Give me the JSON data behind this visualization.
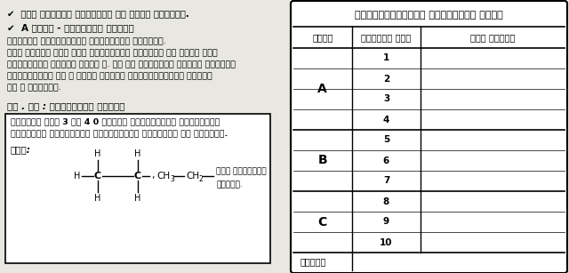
{
  "bg_color": "#e8e8e0",
  "table_bg": "#ffffff",
  "text_color": "#1a1a1a",
  "border_color": "#000000",
  "table_title": "පරික්‍ෂකායොය් ප්‍රයෝජනය සදහා",
  "col1_header": "කොටස",
  "col2_header": "ප්‍රශ්න අංක",
  "col3_header": "ඇලු ලකුණු",
  "sections": [
    {
      "label": "A",
      "rows": [
        "1",
        "2",
        "3",
        "4"
      ]
    },
    {
      "label": "B",
      "rows": [
        "5",
        "6",
        "7"
      ]
    },
    {
      "label": "C",
      "rows": [
        "8",
        "9",
        "10"
      ]
    }
  ],
  "footer": "එකතුව",
  "line1": "✔  ගණක යන්ත්ර හාස්තයට ඉබ දෙනු තෞලුකේ.",
  "line2": "✔  A කොටස - වූයවහාර රැශනා",
  "line3": "සියලුම ප්‍රශ්නහලට පිලිතුරු සපයන්න.",
  "line4": "ආපේ උත්තර ඇක් ඇක් ප්‍රශ්නයට පහළින් ඉබ සලසා ඇති",
  "line5": "ක්‍රාන්වල ලිළිය යුතු ය. මේ ඉබ ප්‍රමාණය උත්තර ලිළිමට",
  "line6": "ප්‍රමාණවත් බව ජ දීරඊ උත්තර බලාපොර්තකු තොලවන",
  "line7": "බව ජ සලකන්න.",
  "line8": "සේ . යු : උදාහරයක් කොටුව",
  "box_line1": "ප්‍රශ්න අංක 3 සහ 4 0 උත්තර සපයකින්දි ඇල්කයිල්",
  "box_line2": "කාර්බන් සම්මිශ්ර ඉකාරයකින් නිරුපනය කප හේකියි.",
  "ex_label": "්ලො:",
  "text_lesa": "ලෙස දැක්ළිය",
  "text_hakiya": "හැකිය."
}
